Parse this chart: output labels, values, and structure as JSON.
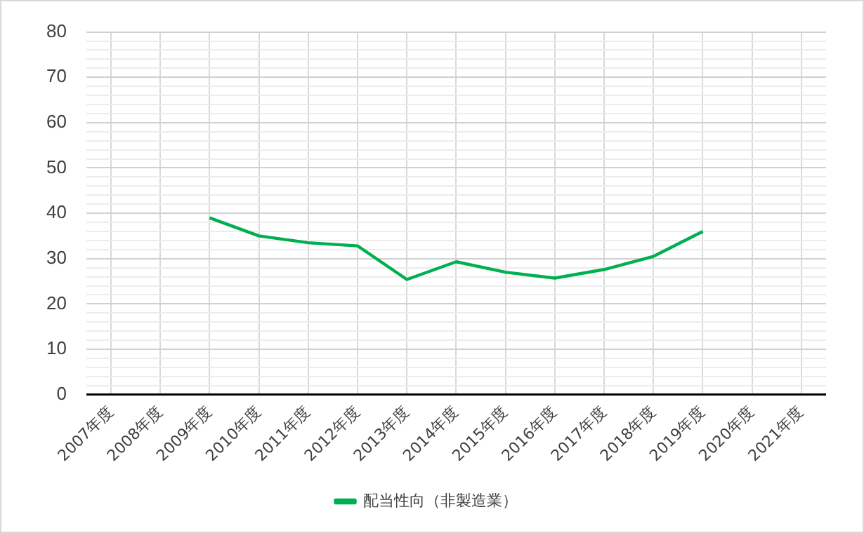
{
  "chart_data": {
    "type": "line",
    "categories": [
      "2007年度",
      "2008年度",
      "2009年度",
      "2010年度",
      "2011年度",
      "2012年度",
      "2013年度",
      "2014年度",
      "2015年度",
      "2016年度",
      "2017年度",
      "2018年度",
      "2019年度",
      "2020年度",
      "2021年度"
    ],
    "series": [
      {
        "name": "配当性向（非製造業）",
        "color": "#00b050",
        "values": [
          null,
          null,
          39.0,
          35.0,
          33.5,
          32.8,
          25.4,
          29.3,
          27.0,
          25.7,
          27.6,
          30.5,
          36.0,
          null,
          null
        ]
      }
    ],
    "ylim": [
      0,
      80
    ],
    "yticks": [
      0,
      {
        "value": 2,
        "label": null
      },
      {
        "value": 4,
        "label": null
      },
      {
        "value": 6,
        "label": null
      },
      {
        "value": 8,
        "label": null
      },
      10,
      {
        "value": 12,
        "label": null
      },
      {
        "value": 14,
        "label": null
      },
      {
        "value": 16,
        "label": null
      },
      {
        "value": 18,
        "label": null
      },
      20,
      {
        "value": 22,
        "label": null
      },
      {
        "value": 24,
        "label": null
      },
      {
        "value": 26,
        "label": null
      },
      {
        "value": 28,
        "label": null
      },
      30,
      {
        "value": 32,
        "label": null
      },
      {
        "value": 34,
        "label": null
      },
      {
        "value": 36,
        "label": null
      },
      {
        "value": 38,
        "label": null
      },
      40,
      {
        "value": 42,
        "label": null
      },
      {
        "value": 44,
        "label": null
      },
      {
        "value": 46,
        "label": null
      },
      {
        "value": 48,
        "label": null
      },
      50,
      {
        "value": 52,
        "label": null
      },
      {
        "value": 54,
        "label": null
      },
      {
        "value": 56,
        "label": null
      },
      {
        "value": 58,
        "label": null
      },
      60,
      {
        "value": 62,
        "label": null
      },
      {
        "value": 64,
        "label": null
      },
      {
        "value": 66,
        "label": null
      },
      {
        "value": 68,
        "label": null
      },
      70,
      {
        "value": 72,
        "label": null
      },
      {
        "value": 74,
        "label": null
      },
      {
        "value": 76,
        "label": null
      },
      {
        "value": 78,
        "label": null
      },
      80
    ],
    "grid": true,
    "legend": "bottom",
    "marker": "none",
    "line_style": "solid"
  }
}
